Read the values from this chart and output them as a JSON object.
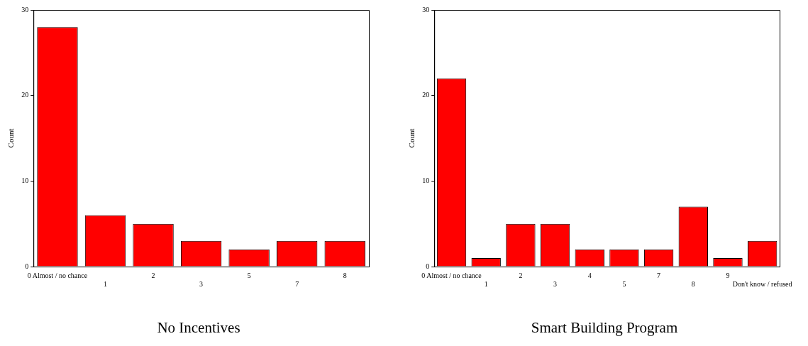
{
  "chart_data": [
    {
      "type": "bar",
      "title": "No Incentives",
      "ylabel": "Count",
      "categories": [
        "0 Almost / no chance",
        "1",
        "2",
        "3",
        "5",
        "7",
        "8"
      ],
      "values": [
        28,
        6,
        5,
        3,
        2,
        3,
        3
      ],
      "color": "#ff0000",
      "ylim": [
        0,
        30
      ],
      "yticks": [
        0,
        10,
        20,
        30
      ],
      "grid": false,
      "legend": false
    },
    {
      "type": "bar",
      "title": "Smart Building Program",
      "ylabel": "Count",
      "categories": [
        "0 Almost / no chance",
        "1",
        "2",
        "3",
        "4",
        "5",
        "7",
        "8",
        "9",
        "Don't know / refused"
      ],
      "values": [
        22,
        1,
        5,
        5,
        2,
        2,
        2,
        7,
        1,
        3
      ],
      "color": "#ff0000",
      "ylim": [
        0,
        30
      ],
      "yticks": [
        0,
        10,
        20,
        30
      ],
      "grid": false,
      "legend": false
    }
  ]
}
